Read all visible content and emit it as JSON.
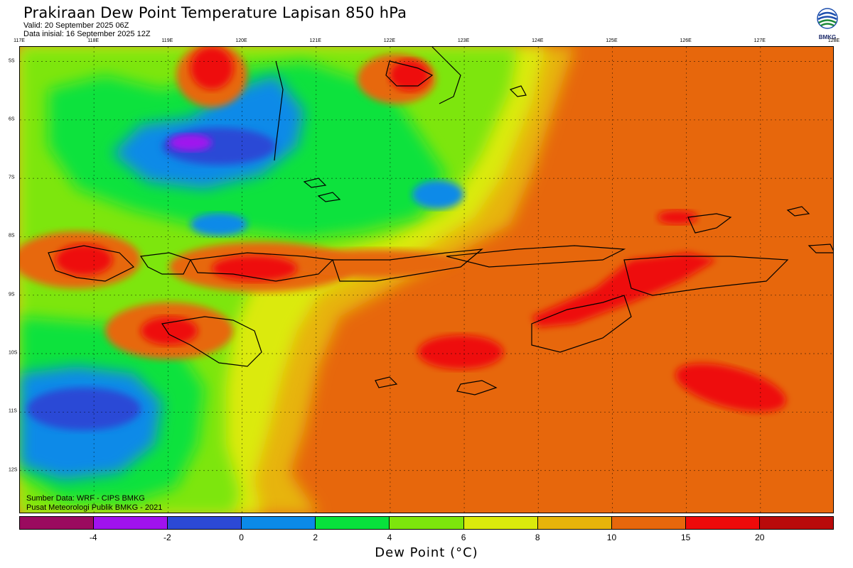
{
  "header": {
    "title": "Prakiraan Dew Point Temperature Lapisan 850 hPa",
    "valid": "Valid: 20 September 2025 06Z",
    "init": "Data inisial: 16 September 2025 12Z"
  },
  "logo": {
    "text": "BMKG"
  },
  "map": {
    "lon_labels": [
      "117E",
      "118E",
      "119E",
      "120E",
      "121E",
      "122E",
      "123E",
      "124E",
      "125E",
      "126E",
      "127E",
      "128E"
    ],
    "lat_labels": [
      "5S",
      "6S",
      "7S",
      "8S",
      "9S",
      "10S",
      "11S",
      "12S"
    ],
    "source_line1": "Sumber Data: WRF - CIPS BMKG",
    "source_line2": "Pusat Meteorologi Publik BMKG - 2021"
  },
  "colorbar": {
    "colors": [
      "#9b0a5f",
      "#a012ee",
      "#2c49d6",
      "#0b8ae8",
      "#08e23c",
      "#7de60c",
      "#dbea0c",
      "#e7b40a",
      "#e7670c",
      "#ee0a0a",
      "#b90a0a"
    ],
    "ticks": [
      "-4",
      "-2",
      "0",
      "2",
      "4",
      "6",
      "8",
      "10",
      "15",
      "20"
    ],
    "title": "Dew Point (°C)"
  }
}
